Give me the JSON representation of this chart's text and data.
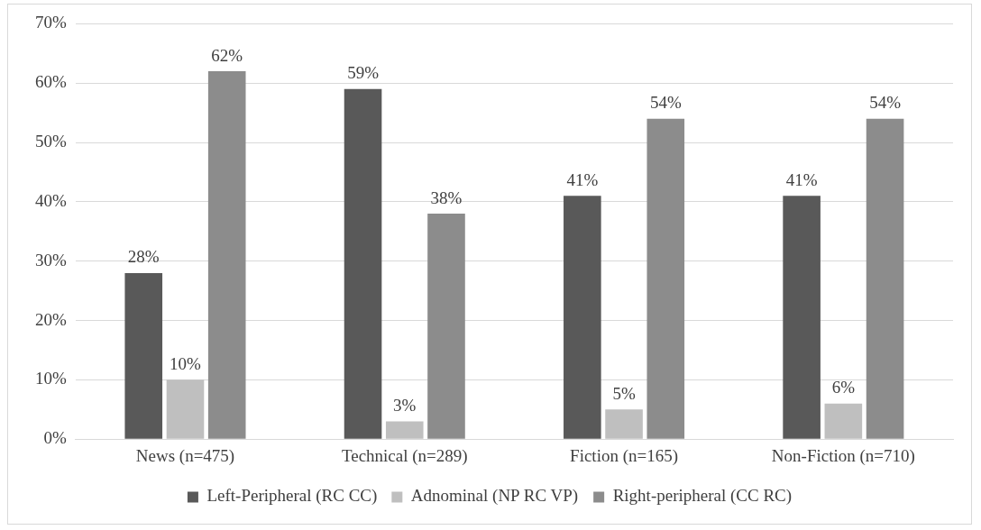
{
  "chart_data": {
    "type": "bar",
    "categories": [
      "News (n=475)",
      "Technical (n=289)",
      "Fiction (n=165)",
      "Non-Fiction (n=710)"
    ],
    "series": [
      {
        "name": "Left-Peripheral (RC CC)",
        "color": "#595959",
        "values": [
          28,
          59,
          41,
          41
        ],
        "value_labels": [
          "28%",
          "59%",
          "41%",
          "41%"
        ]
      },
      {
        "name": "Adnominal (NP RC VP)",
        "color": "#bfbfbf",
        "values": [
          10,
          3,
          5,
          6
        ],
        "value_labels": [
          "10%",
          "3%",
          "5%",
          "6%"
        ]
      },
      {
        "name": "Right-peripheral (CC RC)",
        "color": "#8c8c8c",
        "values": [
          62,
          38,
          54,
          54
        ],
        "value_labels": [
          "62%",
          "38%",
          "54%",
          "54%"
        ]
      }
    ],
    "ylim": [
      0,
      70
    ],
    "yticks": [
      {
        "value": 0,
        "label": "0%"
      },
      {
        "value": 10,
        "label": "10%"
      },
      {
        "value": 20,
        "label": "20%"
      },
      {
        "value": 30,
        "label": "30%"
      },
      {
        "value": 40,
        "label": "40%"
      },
      {
        "value": 50,
        "label": "50%"
      },
      {
        "value": 60,
        "label": "60%"
      },
      {
        "value": 70,
        "label": "70%"
      }
    ],
    "grid": "y",
    "legend": "bottom"
  }
}
